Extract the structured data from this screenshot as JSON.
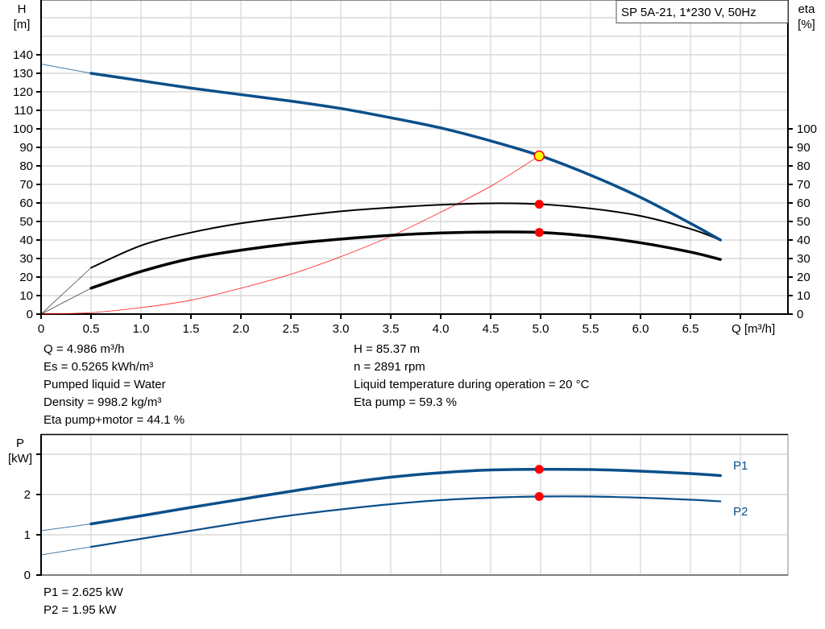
{
  "title_box": "SP 5A-21, 1*230 V, 50Hz",
  "main_chart": {
    "y_left_label_line1": "H",
    "y_left_label_line2": "[m]",
    "y_right_label_line1": "eta",
    "y_right_label_line2": "[%]",
    "x_label": "Q [m³/h]",
    "x_ticks": [
      "0",
      "0.5",
      "1.0",
      "1.5",
      "2.0",
      "2.5",
      "3.0",
      "3.5",
      "4.0",
      "4.5",
      "5.0",
      "5.5",
      "6.0",
      "6.5"
    ],
    "y_left_ticks": [
      "0",
      "10",
      "20",
      "30",
      "40",
      "50",
      "60",
      "70",
      "80",
      "90",
      "100",
      "110",
      "120",
      "130",
      "140"
    ],
    "y_right_ticks": [
      "0",
      "10",
      "20",
      "30",
      "40",
      "50",
      "60",
      "70",
      "80",
      "90",
      "100"
    ]
  },
  "info_left": [
    "Q = 4.986 m³/h",
    "Es = 0.5265 kWh/m³",
    "Pumped liquid = Water",
    "Density = 998.2 kg/m³",
    "Eta pump+motor = 44.1 %"
  ],
  "info_right": [
    "H = 85.37 m",
    "n = 2891 rpm",
    "Liquid temperature during operation = 20 °C",
    "Eta pump = 59.3 %"
  ],
  "power_chart": {
    "y_label_line1": "P",
    "y_label_line2": "[kW]",
    "y_ticks": [
      "0",
      "1",
      "2"
    ],
    "series_labels": [
      "P1",
      "P2"
    ]
  },
  "power_info": [
    "P1 = 2.625 kW",
    "P2 = 1.95 kW"
  ],
  "colors": {
    "head_curve": "#0b4f8a",
    "power_curve": "#0b4f8a",
    "efficiency_curve": "#000000",
    "system_curve": "#ff0000",
    "duty_point_fill": "#ffff00",
    "marker": "#ff0000",
    "grid": "#d9d9d9"
  },
  "chart_data": [
    {
      "type": "line",
      "title": "SP 5A-21, 1*230 V, 50Hz",
      "xlabel": "Q [m³/h]",
      "ylabel": "H [m]",
      "ylabel_right": "eta [%]",
      "xlim": [
        0,
        7.5
      ],
      "ylim": [
        0,
        165
      ],
      "ylim_right": [
        0,
        100
      ],
      "grid": true,
      "x": [
        0,
        0.5,
        1.0,
        1.5,
        2.0,
        2.5,
        3.0,
        3.5,
        4.0,
        4.5,
        5.0,
        5.5,
        6.0,
        6.5,
        6.8
      ],
      "series": [
        {
          "name": "H",
          "axis": "left",
          "values": [
            135,
            130,
            126,
            122,
            118.5,
            115,
            111,
            106,
            100.5,
            93.5,
            85.4,
            75,
            63,
            49,
            40
          ]
        },
        {
          "name": "Eta pump",
          "axis": "right",
          "values": [
            0,
            25,
            37,
            44,
            49,
            52.5,
            55.5,
            57.5,
            59,
            59.8,
            59.3,
            57,
            53,
            46,
            40
          ]
        },
        {
          "name": "Eta pump+motor",
          "axis": "right",
          "values": [
            0,
            14,
            23,
            30,
            34.5,
            38,
            40.5,
            42.5,
            43.8,
            44.3,
            44.1,
            42,
            38.5,
            33.5,
            29.5
          ]
        },
        {
          "name": "System curve",
          "axis": "left",
          "x": [
            0,
            0.5,
            1.0,
            1.5,
            2.0,
            2.5,
            3.0,
            3.5,
            4.0,
            4.5,
            4.986
          ],
          "values": [
            0,
            0.8,
            3.5,
            7.5,
            14,
            21.5,
            31,
            42,
            55,
            69,
            85.37
          ]
        }
      ],
      "duty_point": {
        "Q": 4.986,
        "H": 85.37,
        "eta_pump": 59.3,
        "eta_pump_motor": 44.1
      },
      "annotations": [
        "Q = 4.986 m³/h",
        "H = 85.37 m",
        "Es = 0.5265 kWh/m³",
        "n = 2891 rpm",
        "Pumped liquid = Water",
        "Liquid temperature during operation = 20 °C",
        "Density = 998.2 kg/m³",
        "Eta pump = 59.3 %",
        "Eta pump+motor = 44.1 %"
      ]
    },
    {
      "type": "line",
      "title": "",
      "xlabel": "Q [m³/h]",
      "ylabel": "P [kW]",
      "xlim": [
        0,
        7.5
      ],
      "ylim": [
        0,
        3.5
      ],
      "grid": true,
      "x": [
        0,
        0.5,
        1.0,
        1.5,
        2.0,
        2.5,
        3.0,
        3.5,
        4.0,
        4.5,
        5.0,
        5.5,
        6.0,
        6.5,
        6.8
      ],
      "series": [
        {
          "name": "P1",
          "values": [
            1.1,
            1.27,
            1.47,
            1.68,
            1.88,
            2.08,
            2.27,
            2.43,
            2.54,
            2.61,
            2.625,
            2.62,
            2.58,
            2.52,
            2.47
          ]
        },
        {
          "name": "P2",
          "values": [
            0.5,
            0.7,
            0.9,
            1.1,
            1.3,
            1.48,
            1.63,
            1.76,
            1.86,
            1.92,
            1.95,
            1.95,
            1.92,
            1.87,
            1.83
          ]
        }
      ],
      "duty_point": {
        "Q": 4.986,
        "P1": 2.625,
        "P2": 1.95
      }
    }
  ]
}
